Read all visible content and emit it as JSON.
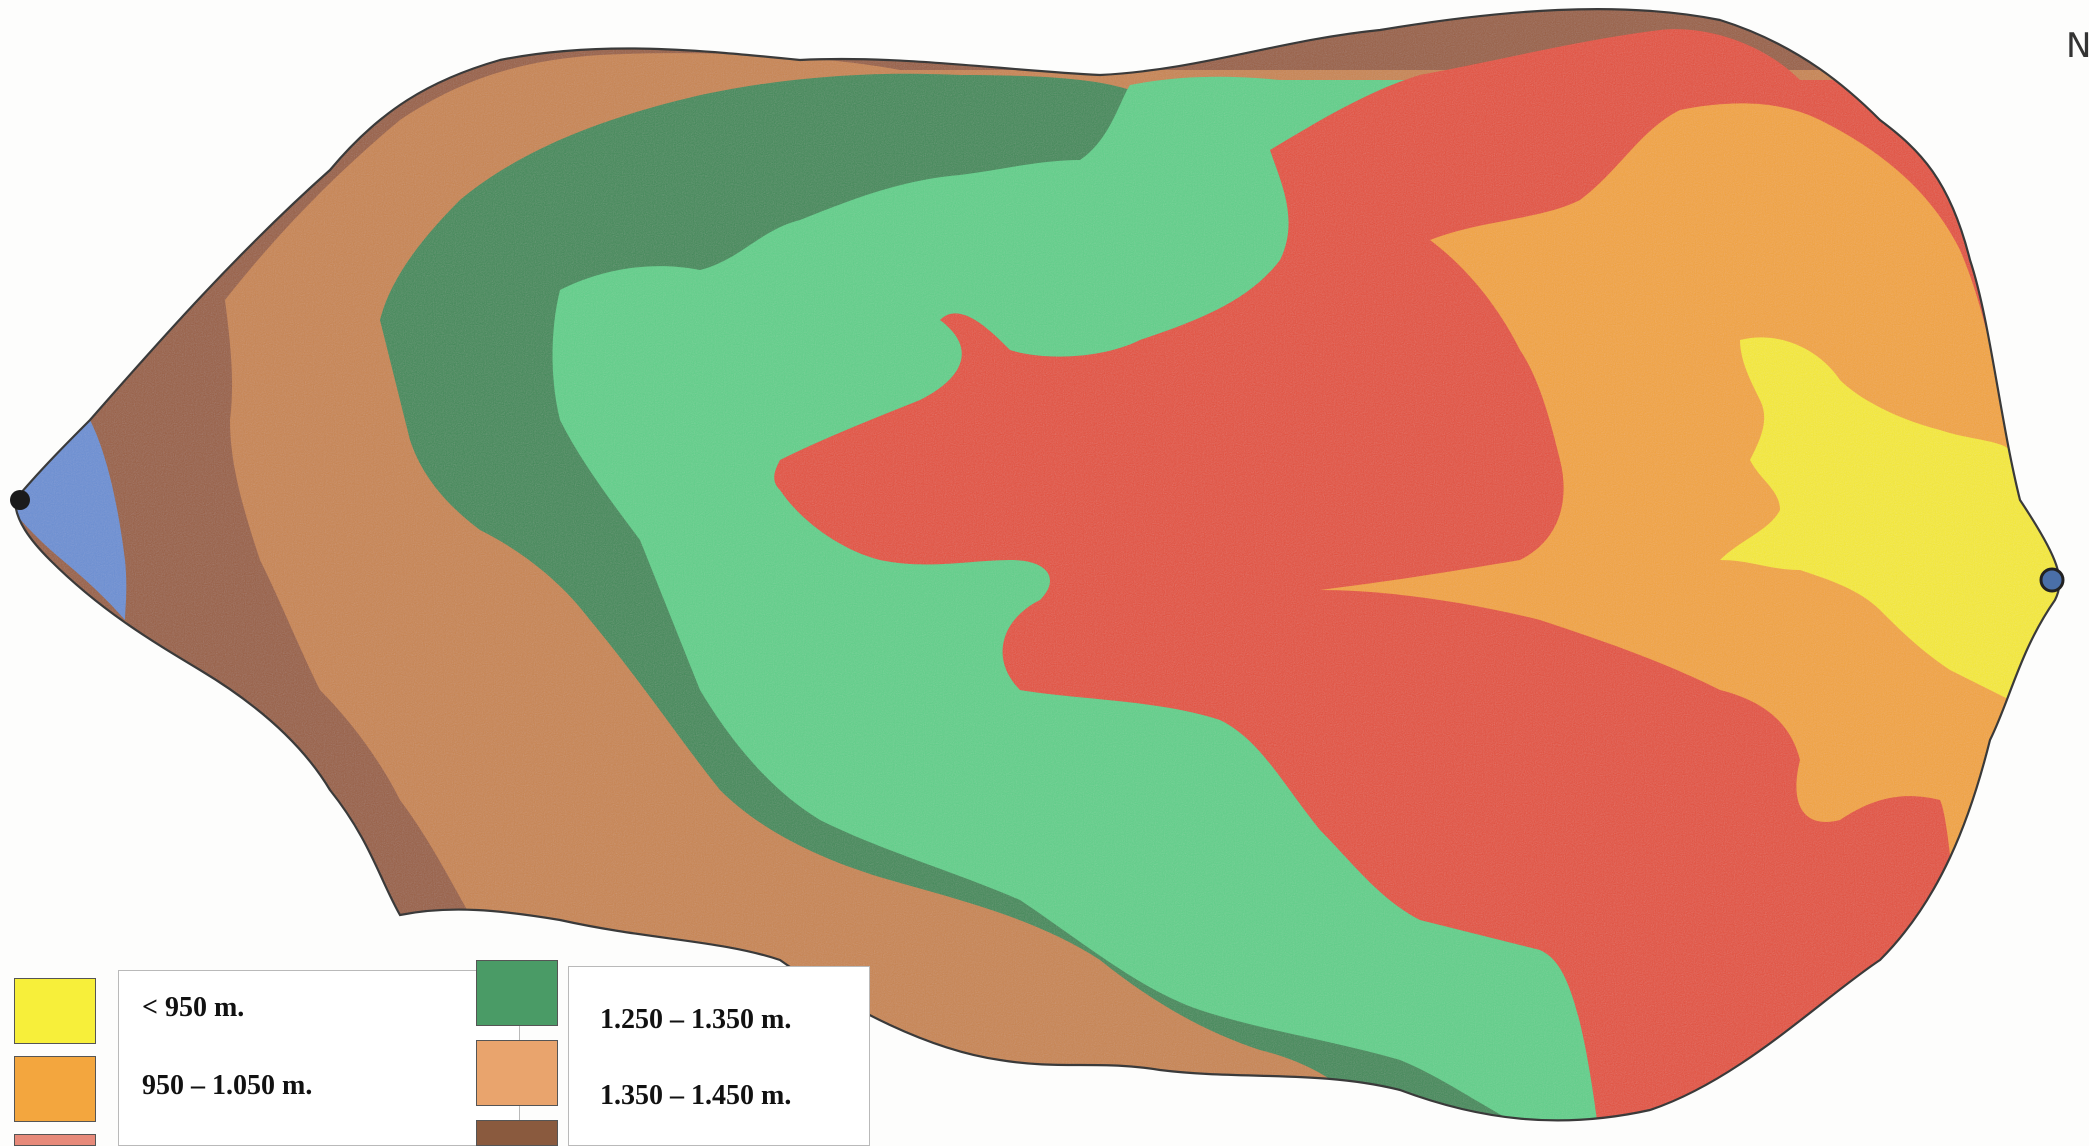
{
  "map": {
    "zones": [
      {
        "id": "blue",
        "color": "#6a8fd4"
      },
      {
        "id": "dark-brown",
        "color": "#9a5f42"
      },
      {
        "id": "light-brown",
        "color": "#c98550"
      },
      {
        "id": "dark-green",
        "color": "#3f8a58"
      },
      {
        "id": "light-green",
        "color": "#5ed08a"
      },
      {
        "id": "red",
        "color": "#e4503a"
      },
      {
        "id": "orange",
        "color": "#f3a43a"
      },
      {
        "id": "yellow",
        "color": "#f6ea2e"
      }
    ],
    "outlet_dot_color": "#4a6fa8"
  },
  "legend": {
    "left": [
      {
        "label": "< 950 m.",
        "color": "#f7ef3a"
      },
      {
        "label": "950 – 1.050 m.",
        "color": "#f3a63e"
      },
      {
        "label": "",
        "color": "#e78a7a"
      }
    ],
    "right": [
      {
        "label": "1.250 – 1.350 m.",
        "color": "#4a9b66"
      },
      {
        "label": "1.350 – 1.450 m.",
        "color": "#e9a46d"
      },
      {
        "label": "",
        "color": "#8a5a3e"
      }
    ]
  },
  "north_arrow": {
    "glyph": "N"
  }
}
